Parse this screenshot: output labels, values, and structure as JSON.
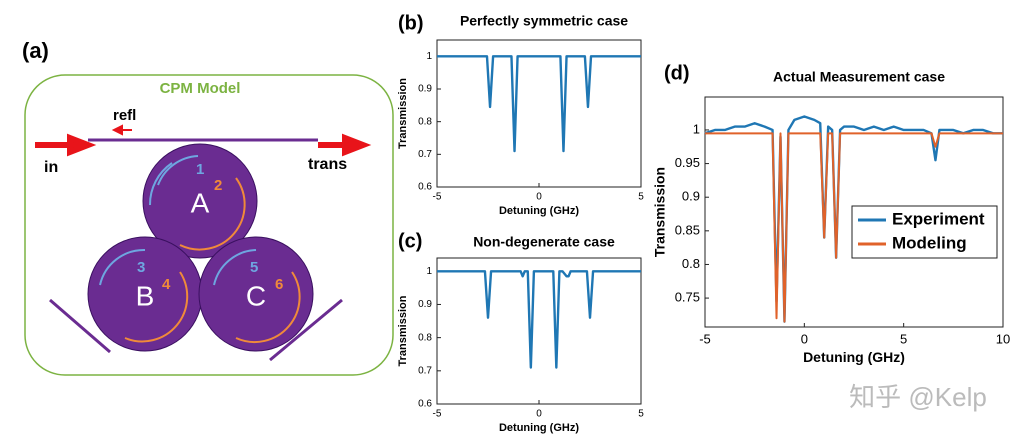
{
  "diagram": {
    "panel": "(a)",
    "title": "CPM Model",
    "refl": "refl",
    "in": "in",
    "trans": "trans",
    "rings": [
      "A",
      "B",
      "C"
    ],
    "modes": [
      "1",
      "2",
      "3",
      "4",
      "5",
      "6"
    ]
  },
  "chart_data": [
    {
      "type": "line",
      "panel": "(b)",
      "title": "Perfectly symmetric case",
      "xlabel": "Detuning (GHz)",
      "ylabel": "Transmission",
      "x": [
        -5,
        -2.55,
        -2.4,
        -2.25,
        -1.35,
        -1.2,
        -1.05,
        1.05,
        1.2,
        1.35,
        2.25,
        2.4,
        2.55,
        5
      ],
      "series": [
        {
          "color": "#1f77b4",
          "values": [
            1,
            1,
            0.845,
            1,
            1,
            0.71,
            1,
            1,
            0.71,
            1,
            1,
            0.845,
            1,
            1
          ]
        }
      ],
      "xlim": [
        -5,
        5
      ],
      "ylim": [
        0.6,
        1.05
      ],
      "xticks": [
        -5,
        0,
        5
      ],
      "yticks": [
        0.6,
        0.7,
        0.8,
        0.9,
        1
      ]
    },
    {
      "type": "line",
      "panel": "(c)",
      "title": "Non-degenerate case",
      "xlabel": "Detuning (GHz)",
      "ylabel": "Transmission",
      "x": [
        -5,
        -2.65,
        -2.5,
        -2.35,
        -0.9,
        -0.8,
        -0.7,
        -0.55,
        -0.4,
        -0.25,
        0.7,
        0.85,
        1.0,
        1.15,
        1.35,
        1.45,
        1.55,
        2.35,
        2.5,
        2.65,
        5
      ],
      "series": [
        {
          "color": "#1f77b4",
          "values": [
            1,
            1,
            0.86,
            1,
            1,
            0.985,
            1,
            1,
            0.71,
            1,
            1,
            0.71,
            1,
            1,
            0.985,
            0.985,
            1,
            1,
            0.86,
            1,
            1
          ]
        }
      ],
      "xlim": [
        -5,
        5
      ],
      "ylim": [
        0.6,
        1.04
      ],
      "xticks": [
        -5,
        0,
        5
      ],
      "yticks": [
        0.6,
        0.7,
        0.8,
        0.9,
        1
      ]
    },
    {
      "type": "line",
      "panel": "(d)",
      "title": "Actual Measurement case",
      "xlabel": "Detuning (GHz)",
      "ylabel": "Transmission",
      "x": [
        -5,
        -4.5,
        -4,
        -3.5,
        -3,
        -2.5,
        -2,
        -1.6,
        -1.4,
        -1.2,
        -1.0,
        -0.8,
        -0.5,
        0,
        0.5,
        0.8,
        1.0,
        1.2,
        1.4,
        1.6,
        1.8,
        2,
        2.5,
        3,
        3.5,
        4,
        4.5,
        5,
        5.5,
        6,
        6.4,
        6.6,
        6.8,
        7,
        7.5,
        8,
        8.5,
        9,
        9.5,
        10
      ],
      "series": [
        {
          "name": "Experiment",
          "color": "#1f77b4",
          "values": [
            0.995,
            1.0,
            1.0,
            1.005,
            1.005,
            1.01,
            1.005,
            1.0,
            0.745,
            0.99,
            0.715,
            1.0,
            1.015,
            1.02,
            1.015,
            1.01,
            0.84,
            1.005,
            1.0,
            0.81,
            1.0,
            1.005,
            1.005,
            1.0,
            1.005,
            1.0,
            1.005,
            1.0,
            1.0,
            1.0,
            0.995,
            0.955,
            1.0,
            1.0,
            1.0,
            0.995,
            1.0,
            1.0,
            0.995,
            0.995
          ]
        },
        {
          "name": "Modeling",
          "color": "#e0622a",
          "values": [
            0.995,
            0.995,
            0.995,
            0.995,
            0.995,
            0.995,
            0.995,
            0.995,
            0.72,
            0.995,
            0.715,
            0.995,
            0.995,
            0.995,
            0.995,
            0.995,
            0.84,
            0.995,
            0.995,
            0.81,
            0.995,
            0.995,
            0.995,
            0.995,
            0.995,
            0.995,
            0.995,
            0.995,
            0.995,
            0.995,
            0.995,
            0.975,
            0.995,
            0.995,
            0.995,
            0.995,
            0.995,
            0.995,
            0.995,
            0.995
          ]
        }
      ],
      "xlim": [
        -5,
        10
      ],
      "ylim": [
        0.707,
        1.049
      ],
      "xticks": [
        -5,
        0,
        5,
        10
      ],
      "yticks": [
        0.75,
        0.8,
        0.85,
        0.9,
        0.95,
        1
      ],
      "legend": "center-right"
    }
  ],
  "watermark": "知乎 @Kelp"
}
